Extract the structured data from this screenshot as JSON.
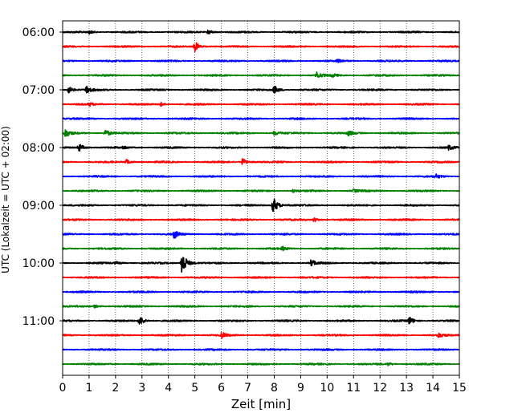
{
  "chart_data": {
    "type": "line",
    "title": "",
    "xlabel": "Zeit  [min]",
    "ylabel": "UTC (Lokalzeit = UTC + 02:00)",
    "xlim": [
      0,
      15
    ],
    "x_ticks": [
      "0",
      "1",
      "2",
      "3",
      "4",
      "5",
      "6",
      "7",
      "8",
      "9",
      "10",
      "11",
      "12",
      "13",
      "14",
      "15"
    ],
    "y_tick_labels": [
      "06:00",
      "07:00",
      "08:00",
      "09:00",
      "10:00",
      "11:00"
    ],
    "grid": "vertical dotted",
    "trace_colors": [
      "#000000",
      "#ff0000",
      "#0000ff",
      "#008000"
    ],
    "traces": [
      {
        "start": "06:00",
        "color": "#000000",
        "events": [
          {
            "t": 5.5,
            "amp": 0.35
          },
          {
            "t": 1.0,
            "amp": 0.2
          }
        ]
      },
      {
        "start": "06:15",
        "color": "#ff0000",
        "events": [
          {
            "t": 5.0,
            "amp": 0.7
          }
        ]
      },
      {
        "start": "06:30",
        "color": "#0000ff",
        "events": [
          {
            "t": 10.4,
            "amp": 0.2
          }
        ]
      },
      {
        "start": "06:45",
        "color": "#008000",
        "events": [
          {
            "t": 9.6,
            "amp": 0.45
          },
          {
            "t": 10.2,
            "amp": 0.2
          }
        ]
      },
      {
        "start": "07:00",
        "color": "#000000",
        "events": [
          {
            "t": 0.2,
            "amp": 0.55
          },
          {
            "t": 0.9,
            "amp": 0.5
          },
          {
            "t": 8.0,
            "amp": 0.55
          }
        ]
      },
      {
        "start": "07:15",
        "color": "#ff0000",
        "events": [
          {
            "t": 1.0,
            "amp": 0.2
          },
          {
            "t": 3.7,
            "amp": 0.25
          }
        ]
      },
      {
        "start": "07:30",
        "color": "#0000ff",
        "events": []
      },
      {
        "start": "07:45",
        "color": "#008000",
        "events": [
          {
            "t": 0.1,
            "amp": 0.55
          },
          {
            "t": 1.6,
            "amp": 0.55
          },
          {
            "t": 8.0,
            "amp": 0.3
          },
          {
            "t": 10.8,
            "amp": 0.3
          }
        ]
      },
      {
        "start": "08:00",
        "color": "#000000",
        "events": [
          {
            "t": 0.6,
            "amp": 0.6
          },
          {
            "t": 2.3,
            "amp": 0.2
          },
          {
            "t": 14.6,
            "amp": 0.3
          }
        ]
      },
      {
        "start": "08:15",
        "color": "#ff0000",
        "events": [
          {
            "t": 2.4,
            "amp": 0.35
          },
          {
            "t": 6.8,
            "amp": 0.5
          }
        ]
      },
      {
        "start": "08:30",
        "color": "#0000ff",
        "events": [
          {
            "t": 14.1,
            "amp": 0.3
          }
        ]
      },
      {
        "start": "08:45",
        "color": "#008000",
        "events": [
          {
            "t": 8.7,
            "amp": 0.2
          },
          {
            "t": 11.0,
            "amp": 0.2
          }
        ]
      },
      {
        "start": "09:00",
        "color": "#000000",
        "events": [
          {
            "t": 7.95,
            "amp": 1.3
          }
        ]
      },
      {
        "start": "09:15",
        "color": "#ff0000",
        "events": [
          {
            "t": 9.5,
            "amp": 0.3
          }
        ]
      },
      {
        "start": "09:30",
        "color": "#0000ff",
        "events": [
          {
            "t": 4.2,
            "amp": 0.6
          }
        ]
      },
      {
        "start": "09:45",
        "color": "#008000",
        "events": [
          {
            "t": 8.3,
            "amp": 0.25
          }
        ]
      },
      {
        "start": "10:00",
        "color": "#000000",
        "events": [
          {
            "t": 4.5,
            "amp": 2.0
          },
          {
            "t": 9.4,
            "amp": 0.45
          },
          {
            "t": 2.0,
            "amp": 0.2
          }
        ]
      },
      {
        "start": "10:15",
        "color": "#ff0000",
        "events": []
      },
      {
        "start": "10:30",
        "color": "#0000ff",
        "events": []
      },
      {
        "start": "10:45",
        "color": "#008000",
        "events": [
          {
            "t": 1.2,
            "amp": 0.2
          }
        ]
      },
      {
        "start": "11:00",
        "color": "#000000",
        "events": [
          {
            "t": 2.9,
            "amp": 0.7
          },
          {
            "t": 13.1,
            "amp": 0.55
          }
        ]
      },
      {
        "start": "11:15",
        "color": "#ff0000",
        "events": [
          {
            "t": 6.0,
            "amp": 0.4
          },
          {
            "t": 14.2,
            "amp": 0.3
          }
        ]
      },
      {
        "start": "11:30",
        "color": "#0000ff",
        "events": []
      },
      {
        "start": "11:45",
        "color": "#008000",
        "events": [
          {
            "t": 12.3,
            "amp": 0.2
          }
        ]
      }
    ]
  }
}
